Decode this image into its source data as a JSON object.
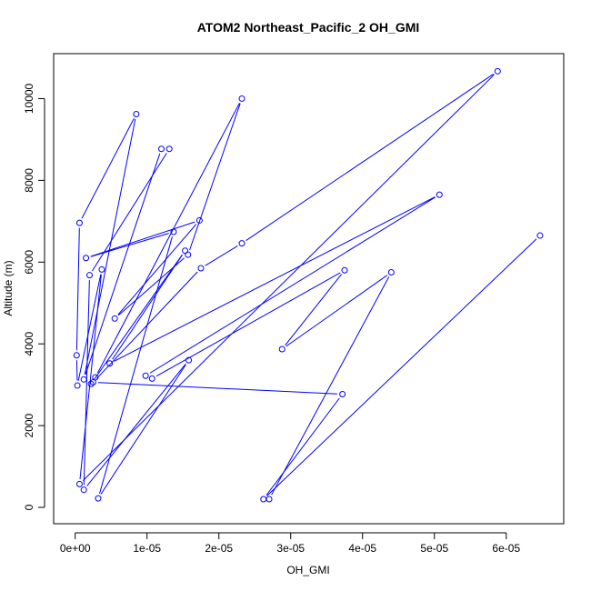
{
  "chart_data": {
    "type": "line",
    "title": "ATOM2 Northeast_Pacific_2 OH_GMI",
    "xlabel": "OH_GMI",
    "ylabel": "Altitude (m)",
    "xlim": [
      -3e-06,
      6.8e-05
    ],
    "ylim": [
      -400,
      11100
    ],
    "x_ticks": [
      0,
      1e-05,
      2e-05,
      3e-05,
      4e-05,
      5e-05,
      6e-05
    ],
    "x_tick_labels": [
      "0e+00",
      "1e-05",
      "2e-05",
      "3e-05",
      "4e-05",
      "5e-05",
      "6e-05"
    ],
    "y_ticks": [
      0,
      2000,
      4000,
      6000,
      8000,
      10000
    ],
    "y_tick_labels": [
      "0",
      "2000",
      "4000",
      "6000",
      "8000",
      "10000"
    ],
    "grid": false,
    "series": [
      {
        "color": "#0000ff",
        "marker": "open-circle",
        "points": [
          {
            "x": 2.7e-05,
            "y": 200
          },
          {
            "x": 4.4e-05,
            "y": 5750
          },
          {
            "x": 2.88e-05,
            "y": 3870
          },
          {
            "x": 3.75e-05,
            "y": 5800
          },
          {
            "x": 1.07e-05,
            "y": 3150
          },
          {
            "x": 9.8e-06,
            "y": 3220
          },
          {
            "x": 5.07e-05,
            "y": 7650
          },
          {
            "x": 4.8e-06,
            "y": 3520
          },
          {
            "x": 1.53e-05,
            "y": 6280
          },
          {
            "x": 2.2e-06,
            "y": 3020
          },
          {
            "x": 2.8e-06,
            "y": 3180
          },
          {
            "x": 2.32e-05,
            "y": 10000
          },
          {
            "x": 1.57e-05,
            "y": 6180
          },
          {
            "x": 5.5e-06,
            "y": 4620
          },
          {
            "x": 1.73e-05,
            "y": 7020
          },
          {
            "x": 1.5e-06,
            "y": 6100
          },
          {
            "x": 1.37e-05,
            "y": 6740
          },
          {
            "x": 3.2e-06,
            "y": 220
          },
          {
            "x": 1.58e-05,
            "y": 3600
          },
          {
            "x": 1.2e-06,
            "y": 430
          },
          {
            "x": 2e-06,
            "y": 5680
          },
          {
            "x": 1.31e-05,
            "y": 8770
          },
          {
            "x": 1.2e-05,
            "y": 8770
          },
          {
            "x": 1.2e-06,
            "y": 3130
          },
          {
            "x": 8.5e-06,
            "y": 9620
          },
          {
            "x": 6e-07,
            "y": 6960
          },
          {
            "x": 2e-07,
            "y": 3720
          },
          {
            "x": 3e-07,
            "y": 2980
          },
          {
            "x": 3.7e-06,
            "y": 5820
          },
          {
            "x": 6e-07,
            "y": 570
          },
          {
            "x": 5.88e-05,
            "y": 10670
          },
          {
            "x": 2.32e-05,
            "y": 6460
          },
          {
            "x": 1.75e-05,
            "y": 5850
          },
          {
            "x": 2.5e-06,
            "y": 3060
          },
          {
            "x": 3.72e-05,
            "y": 2770
          },
          {
            "x": 2.62e-05,
            "y": 200
          },
          {
            "x": 6.47e-05,
            "y": 6650
          }
        ]
      }
    ]
  }
}
